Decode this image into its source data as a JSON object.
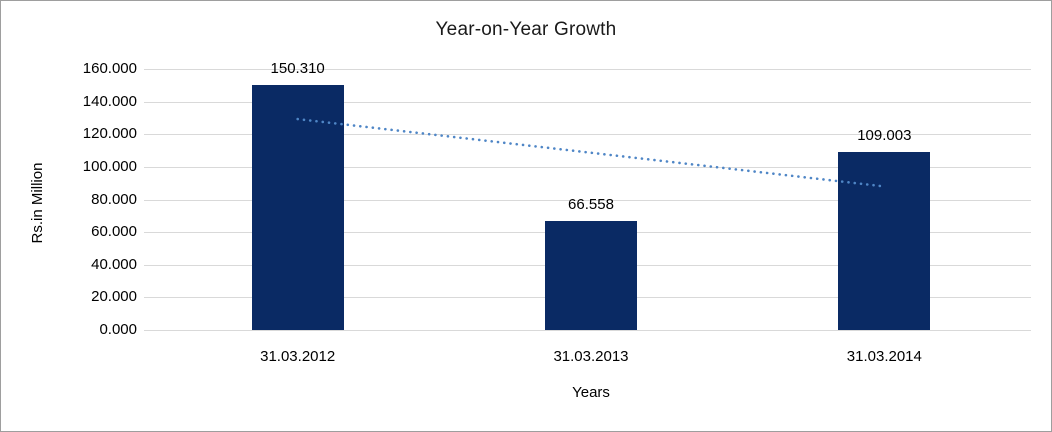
{
  "window": {
    "background": "#ffffff",
    "border_color": "#9e9e9e"
  },
  "chart_data": {
    "type": "bar",
    "title": "Year-on-Year Growth",
    "xlabel": "Years",
    "ylabel": "Rs.in Million",
    "categories": [
      "31.03.2012",
      "31.03.2013",
      "31.03.2014"
    ],
    "values": [
      150.31,
      66.558,
      109.003
    ],
    "value_labels": [
      "150.310",
      "66.558",
      "109.003"
    ],
    "ylim": [
      0,
      160
    ],
    "ytick_values": [
      0,
      20,
      40,
      60,
      80,
      100,
      120,
      140,
      160
    ],
    "ytick_labels": [
      "0.000",
      "20.000",
      "40.000",
      "60.000",
      "80.000",
      "100.000",
      "120.000",
      "140.000",
      "160.000"
    ],
    "grid": true,
    "legend": "none",
    "bar_color": "#0a2a64",
    "gridline_color": "#d9d9d9",
    "text_color": "#000000",
    "trendline": {
      "type": "linear",
      "style": "dotted",
      "color": "#4f86c6",
      "start_value": 129.3,
      "end_value": 88.0
    }
  }
}
